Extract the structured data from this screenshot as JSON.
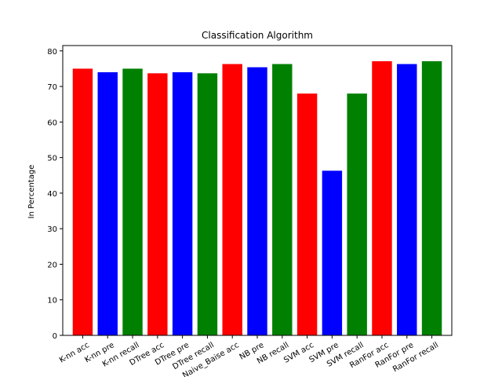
{
  "chart_data": {
    "type": "bar",
    "title": "Classification Algorithm",
    "xlabel": "",
    "ylabel": "In Percentage",
    "ylim": [
      0,
      81.5
    ],
    "yticks": [
      0,
      10,
      20,
      30,
      40,
      50,
      60,
      70,
      80
    ],
    "grid": false,
    "legend": "none",
    "categories": [
      "K-nn acc",
      "K-nn pre",
      "K-nn recall",
      "DTree acc",
      "DTree pre",
      "DTree recall",
      "Naive_Baise acc",
      "NB pre",
      "NB recall",
      "SVM acc",
      "SVM pre",
      "SVM recall",
      "RanFor acc",
      "RanFor pre",
      "RanFor recall"
    ],
    "values": [
      75.0,
      74.0,
      75.0,
      73.7,
      74.0,
      73.7,
      76.3,
      75.4,
      76.3,
      68.0,
      46.3,
      68.0,
      77.1,
      76.3,
      77.1
    ],
    "colors": [
      "#ff0000",
      "#0000ff",
      "#008000",
      "#ff0000",
      "#0000ff",
      "#008000",
      "#ff0000",
      "#0000ff",
      "#008000",
      "#ff0000",
      "#0000ff",
      "#008000",
      "#ff0000",
      "#0000ff",
      "#008000"
    ]
  }
}
